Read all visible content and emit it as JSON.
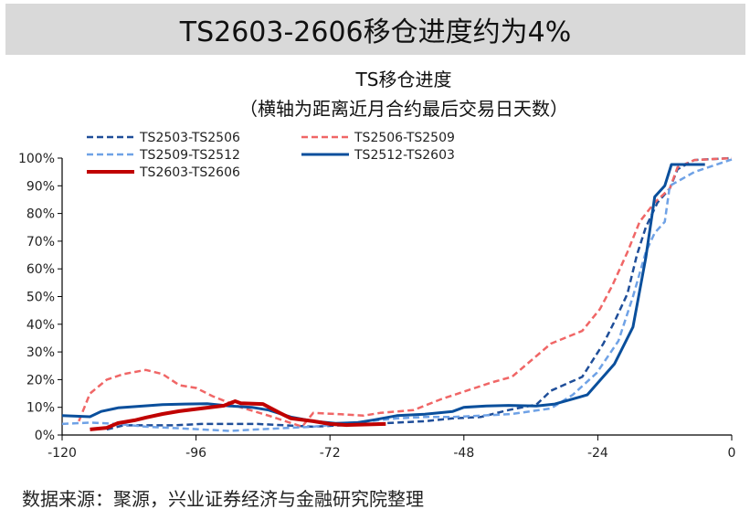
{
  "banner": {
    "title": "TS2603-2606移仓进度约为4%"
  },
  "source": "数据来源：聚源，兴业证券经济与金融研究院整理",
  "chart_data": {
    "type": "line",
    "title": "TS移仓进度",
    "subtitle": "（横轴为距离近月合约最后交易日天数）",
    "xlim": [
      -120,
      0
    ],
    "ylim": [
      0,
      100
    ],
    "xticks": [
      -120,
      -96,
      -72,
      -48,
      -24,
      0
    ],
    "yticks": [
      0,
      10,
      20,
      30,
      40,
      50,
      60,
      70,
      80,
      90,
      100
    ],
    "ytick_suffix": "%",
    "grid": false,
    "legend": "top-left",
    "series": [
      {
        "name": "TS2503-TS2506",
        "color": "#1f4e99",
        "style": "dashed",
        "width": 2.5,
        "points": [
          [
            -112,
            2
          ],
          [
            -109,
            3.5
          ],
          [
            -100,
            3.5
          ],
          [
            -95,
            4
          ],
          [
            -85,
            4
          ],
          [
            -80,
            3.5
          ],
          [
            -75,
            3
          ],
          [
            -70,
            3.5
          ],
          [
            -65,
            4
          ],
          [
            -60,
            4.5
          ],
          [
            -55,
            5
          ],
          [
            -50,
            6
          ],
          [
            -45,
            6.5
          ],
          [
            -40,
            9
          ],
          [
            -35,
            11
          ],
          [
            -32.4,
            16
          ],
          [
            -26.8,
            21
          ],
          [
            -23,
            33
          ],
          [
            -21,
            41
          ],
          [
            -18.7,
            51
          ],
          [
            -17,
            65
          ],
          [
            -15.4,
            75
          ],
          [
            -13.3,
            84
          ],
          [
            -11.1,
            89
          ],
          [
            -9.7,
            96
          ],
          [
            -6.7,
            99.3
          ],
          [
            0,
            100
          ]
        ]
      },
      {
        "name": "TS2506-TS2509",
        "color": "#f06666",
        "style": "dashed",
        "width": 2.5,
        "points": [
          [
            -117,
            5
          ],
          [
            -115,
            15
          ],
          [
            -112,
            20
          ],
          [
            -109,
            22
          ],
          [
            -105,
            23.5
          ],
          [
            -102,
            22
          ],
          [
            -99,
            18
          ],
          [
            -96,
            17
          ],
          [
            -93,
            14
          ],
          [
            -88,
            10
          ],
          [
            -83,
            7
          ],
          [
            -77,
            3
          ],
          [
            -75,
            8
          ],
          [
            -70,
            7.5
          ],
          [
            -66,
            7
          ],
          [
            -63,
            8
          ],
          [
            -57,
            9
          ],
          [
            -52,
            13
          ],
          [
            -46,
            17
          ],
          [
            -43,
            19
          ],
          [
            -39.4,
            21
          ],
          [
            -32.4,
            33
          ],
          [
            -26.8,
            37.6
          ],
          [
            -23.6,
            45.5
          ],
          [
            -21.4,
            54
          ],
          [
            -18.7,
            66
          ],
          [
            -16.5,
            77
          ],
          [
            -13.8,
            84
          ],
          [
            -11.1,
            89
          ],
          [
            -9.7,
            96.7
          ],
          [
            -6.7,
            99.3
          ],
          [
            0,
            100
          ]
        ]
      },
      {
        "name": "TS2509-TS2512",
        "color": "#6fa2e6",
        "style": "dashed",
        "width": 2.5,
        "points": [
          [
            -120,
            4
          ],
          [
            -115,
            4.5
          ],
          [
            -110,
            4
          ],
          [
            -105,
            3
          ],
          [
            -100,
            2.5
          ],
          [
            -95,
            2
          ],
          [
            -90,
            1.5
          ],
          [
            -85,
            2
          ],
          [
            -80,
            2.5
          ],
          [
            -75,
            3
          ],
          [
            -70,
            4
          ],
          [
            -65,
            5
          ],
          [
            -60,
            6
          ],
          [
            -55,
            6.5
          ],
          [
            -50,
            6.5
          ],
          [
            -45,
            7
          ],
          [
            -39.4,
            7.6
          ],
          [
            -32.4,
            9.6
          ],
          [
            -28.5,
            14.5
          ],
          [
            -24.2,
            22.4
          ],
          [
            -20.3,
            34
          ],
          [
            -17.7,
            50
          ],
          [
            -15.4,
            66
          ],
          [
            -13.8,
            73
          ],
          [
            -12,
            77
          ],
          [
            -11.1,
            90
          ],
          [
            -6.7,
            95
          ],
          [
            0,
            99.5
          ]
        ]
      },
      {
        "name": "TS2512-TS2603",
        "color": "#0a4f9c",
        "style": "solid",
        "width": 3,
        "points": [
          [
            -120,
            7
          ],
          [
            -115,
            6.6
          ],
          [
            -113,
            8.5
          ],
          [
            -110,
            9.8
          ],
          [
            -106,
            10.4
          ],
          [
            -102,
            11
          ],
          [
            -98,
            11.2
          ],
          [
            -94,
            11.3
          ],
          [
            -90,
            10.5
          ],
          [
            -86,
            10
          ],
          [
            -83,
            9
          ],
          [
            -79,
            6.5
          ],
          [
            -75,
            5
          ],
          [
            -71,
            4.2
          ],
          [
            -67,
            4.5
          ],
          [
            -64,
            5.5
          ],
          [
            -60,
            7
          ],
          [
            -55,
            7.5
          ],
          [
            -50,
            8.5
          ],
          [
            -48,
            10
          ],
          [
            -44,
            10.5
          ],
          [
            -40,
            10.7
          ],
          [
            -35,
            10.5
          ],
          [
            -31.7,
            11.2
          ],
          [
            -25.9,
            14.5
          ],
          [
            -21,
            25.7
          ],
          [
            -17.7,
            39
          ],
          [
            -15.4,
            64
          ],
          [
            -13.8,
            86
          ],
          [
            -12,
            90
          ],
          [
            -10.8,
            97.7
          ],
          [
            -4.8,
            97.7
          ]
        ]
      },
      {
        "name": "TS2603-TS2606",
        "color": "#c00000",
        "style": "solid",
        "width": 4,
        "points": [
          [
            -115,
            2
          ],
          [
            -112,
            2.6
          ],
          [
            -110,
            4.3
          ],
          [
            -107,
            5.3
          ],
          [
            -105,
            6.3
          ],
          [
            -102,
            7.6
          ],
          [
            -99,
            8.6
          ],
          [
            -95,
            9.6
          ],
          [
            -91,
            10.6
          ],
          [
            -89,
            12.2
          ],
          [
            -88,
            11.5
          ],
          [
            -84,
            11.2
          ],
          [
            -81,
            8
          ],
          [
            -79,
            6
          ],
          [
            -75,
            5
          ],
          [
            -72,
            4
          ],
          [
            -69,
            3.6
          ],
          [
            -62,
            4
          ]
        ]
      }
    ]
  }
}
